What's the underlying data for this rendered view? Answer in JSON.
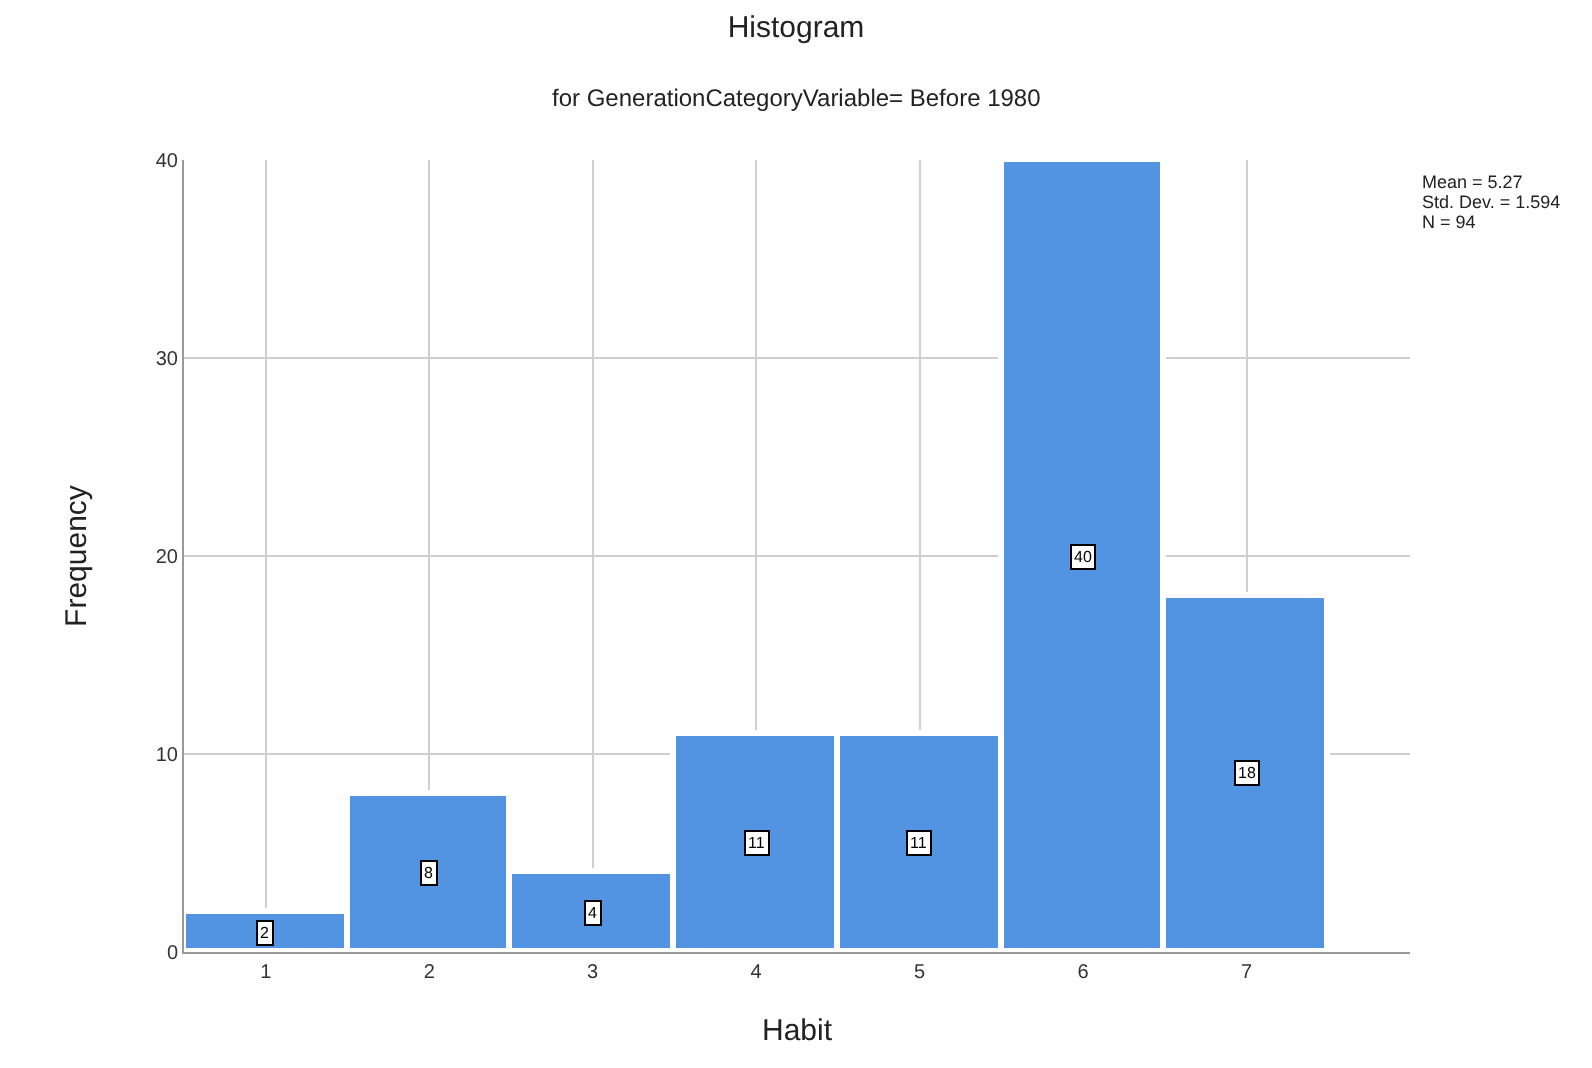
{
  "chart_data": {
    "type": "histogram",
    "title": "Histogram",
    "subtitle": "for GenerationCategoryVariable= Before 1980",
    "xlabel": "Habit",
    "ylabel": "Frequency",
    "bins": [
      0.5,
      1.5,
      2.5,
      3.5,
      4.5,
      5.5,
      6.5,
      7.5
    ],
    "values": [
      2,
      8,
      4,
      11,
      11,
      40,
      18
    ],
    "color": "#5294e2",
    "data_labels": true,
    "xlim": [
      0.5,
      8
    ],
    "xticks": [
      1,
      2,
      3,
      4,
      5,
      6,
      7
    ],
    "ylim": [
      0,
      40
    ],
    "yticks": [
      0,
      10,
      20,
      30,
      40
    ],
    "grid": true,
    "legend": false,
    "annotations": [
      "Mean = 5.27",
      "Std. Dev. = 1.594",
      "N = 94"
    ]
  }
}
